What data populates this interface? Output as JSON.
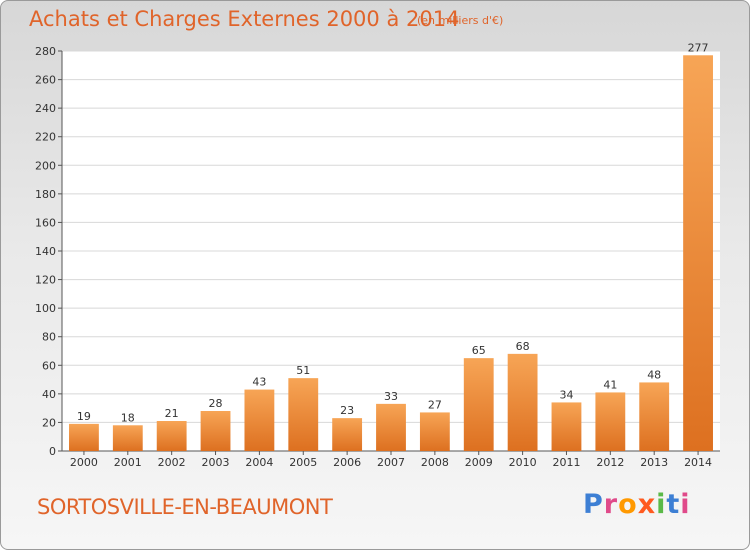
{
  "header": {
    "title": "Achats et Charges Externes 2000 à 2014",
    "subtitle": "(en milliers d'€)"
  },
  "footer": {
    "town": "SORTOSVILLE-EN-BEAUMONT",
    "logo_text": "Proxiti",
    "logo_colors": [
      "#3d7fd4",
      "#e04a8a",
      "#ff9900",
      "#ff5a1f",
      "#5ab948",
      "#3d7fd4",
      "#e04a8a"
    ]
  },
  "chart_data": {
    "type": "bar",
    "categories": [
      "2000",
      "2001",
      "2002",
      "2003",
      "2004",
      "2005",
      "2006",
      "2007",
      "2008",
      "2009",
      "2010",
      "2011",
      "2012",
      "2013",
      "2014"
    ],
    "values": [
      19,
      18,
      21,
      28,
      43,
      51,
      23,
      33,
      27,
      65,
      68,
      34,
      41,
      48,
      277
    ],
    "ylim": [
      0,
      280
    ],
    "yticks": [
      0,
      20,
      40,
      60,
      80,
      100,
      120,
      140,
      160,
      180,
      200,
      220,
      240,
      260,
      280
    ],
    "grid": true,
    "bar_colors": {
      "light": "#f7a556",
      "dark": "#dd7020"
    }
  }
}
